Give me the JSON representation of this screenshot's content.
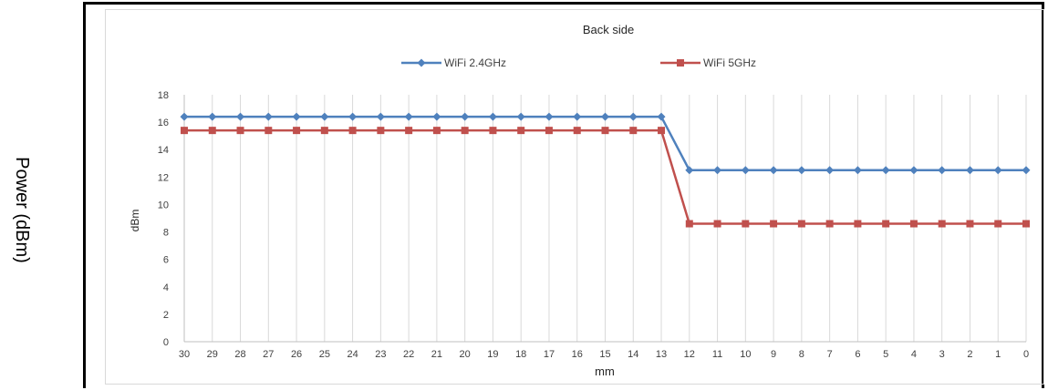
{
  "outer_ylabel": "Power (dBm)",
  "chart_data": {
    "type": "line",
    "title": "Back side",
    "xlabel": "mm",
    "ylabel": "dBm",
    "ylim": [
      0,
      18
    ],
    "yticks": [
      0,
      2,
      4,
      6,
      8,
      10,
      12,
      14,
      16,
      18
    ],
    "grid": "vertical",
    "legend": "top-center",
    "categories": [
      "30",
      "29",
      "28",
      "27",
      "26",
      "25",
      "24",
      "23",
      "22",
      "21",
      "20",
      "19",
      "18",
      "17",
      "16",
      "15",
      "14",
      "13",
      "12",
      "11",
      "10",
      "9",
      "8",
      "7",
      "6",
      "5",
      "4",
      "3",
      "2",
      "1",
      "0"
    ],
    "series": [
      {
        "name": "WiFi 2.4GHz",
        "color": "#4f81bd",
        "marker": "diamond",
        "values": [
          16.4,
          16.4,
          16.4,
          16.4,
          16.4,
          16.4,
          16.4,
          16.4,
          16.4,
          16.4,
          16.4,
          16.4,
          16.4,
          16.4,
          16.4,
          16.4,
          16.4,
          16.4,
          12.5,
          12.5,
          12.5,
          12.5,
          12.5,
          12.5,
          12.5,
          12.5,
          12.5,
          12.5,
          12.5,
          12.5,
          12.5
        ]
      },
      {
        "name": "WiFi 5GHz",
        "color": "#c0504d",
        "marker": "square",
        "values": [
          15.4,
          15.4,
          15.4,
          15.4,
          15.4,
          15.4,
          15.4,
          15.4,
          15.4,
          15.4,
          15.4,
          15.4,
          15.4,
          15.4,
          15.4,
          15.4,
          15.4,
          15.4,
          8.6,
          8.6,
          8.6,
          8.6,
          8.6,
          8.6,
          8.6,
          8.6,
          8.6,
          8.6,
          8.6,
          8.6,
          8.6
        ]
      }
    ]
  }
}
